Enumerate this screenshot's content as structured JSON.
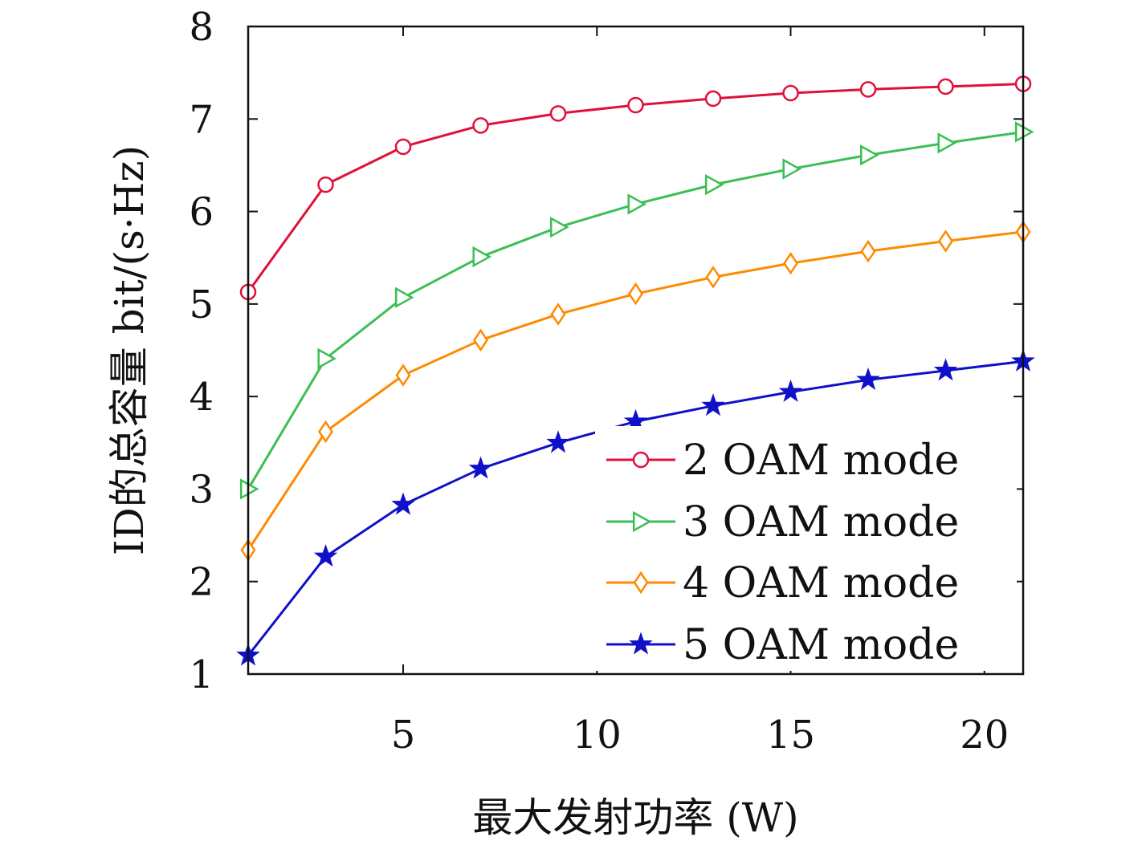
{
  "chart_data": {
    "type": "line",
    "xlabel": "最大发射功率 (W)",
    "ylabel": "ID的总容量 bit/(s·Hz)",
    "xlim": [
      1,
      21
    ],
    "ylim": [
      1,
      8
    ],
    "xticks": [
      5,
      10,
      15,
      20
    ],
    "yticks": [
      1,
      2,
      3,
      4,
      5,
      6,
      7,
      8
    ],
    "grid": false,
    "legend_position": "bottom-right",
    "x": [
      1,
      3,
      5,
      7,
      9,
      11,
      13,
      15,
      17,
      19,
      21
    ],
    "series": [
      {
        "name": "2 OAM mode",
        "color": "#e0103a",
        "marker": "circle",
        "values": [
          5.13,
          6.29,
          6.7,
          6.93,
          7.06,
          7.15,
          7.22,
          7.28,
          7.32,
          7.35,
          7.38
        ]
      },
      {
        "name": "3 OAM mode",
        "color": "#3bbf55",
        "marker": "triangle-right",
        "values": [
          3.0,
          4.41,
          5.07,
          5.51,
          5.83,
          6.08,
          6.29,
          6.46,
          6.61,
          6.74,
          6.86
        ]
      },
      {
        "name": "4 OAM mode",
        "color": "#ff8a00",
        "marker": "diamond",
        "values": [
          2.34,
          3.62,
          4.23,
          4.61,
          4.89,
          5.11,
          5.29,
          5.44,
          5.57,
          5.68,
          5.78
        ]
      },
      {
        "name": "5 OAM mode",
        "color": "#1010c8",
        "marker": "star",
        "values": [
          1.2,
          2.27,
          2.83,
          3.22,
          3.5,
          3.73,
          3.9,
          4.05,
          4.18,
          4.28,
          4.38
        ]
      }
    ]
  }
}
